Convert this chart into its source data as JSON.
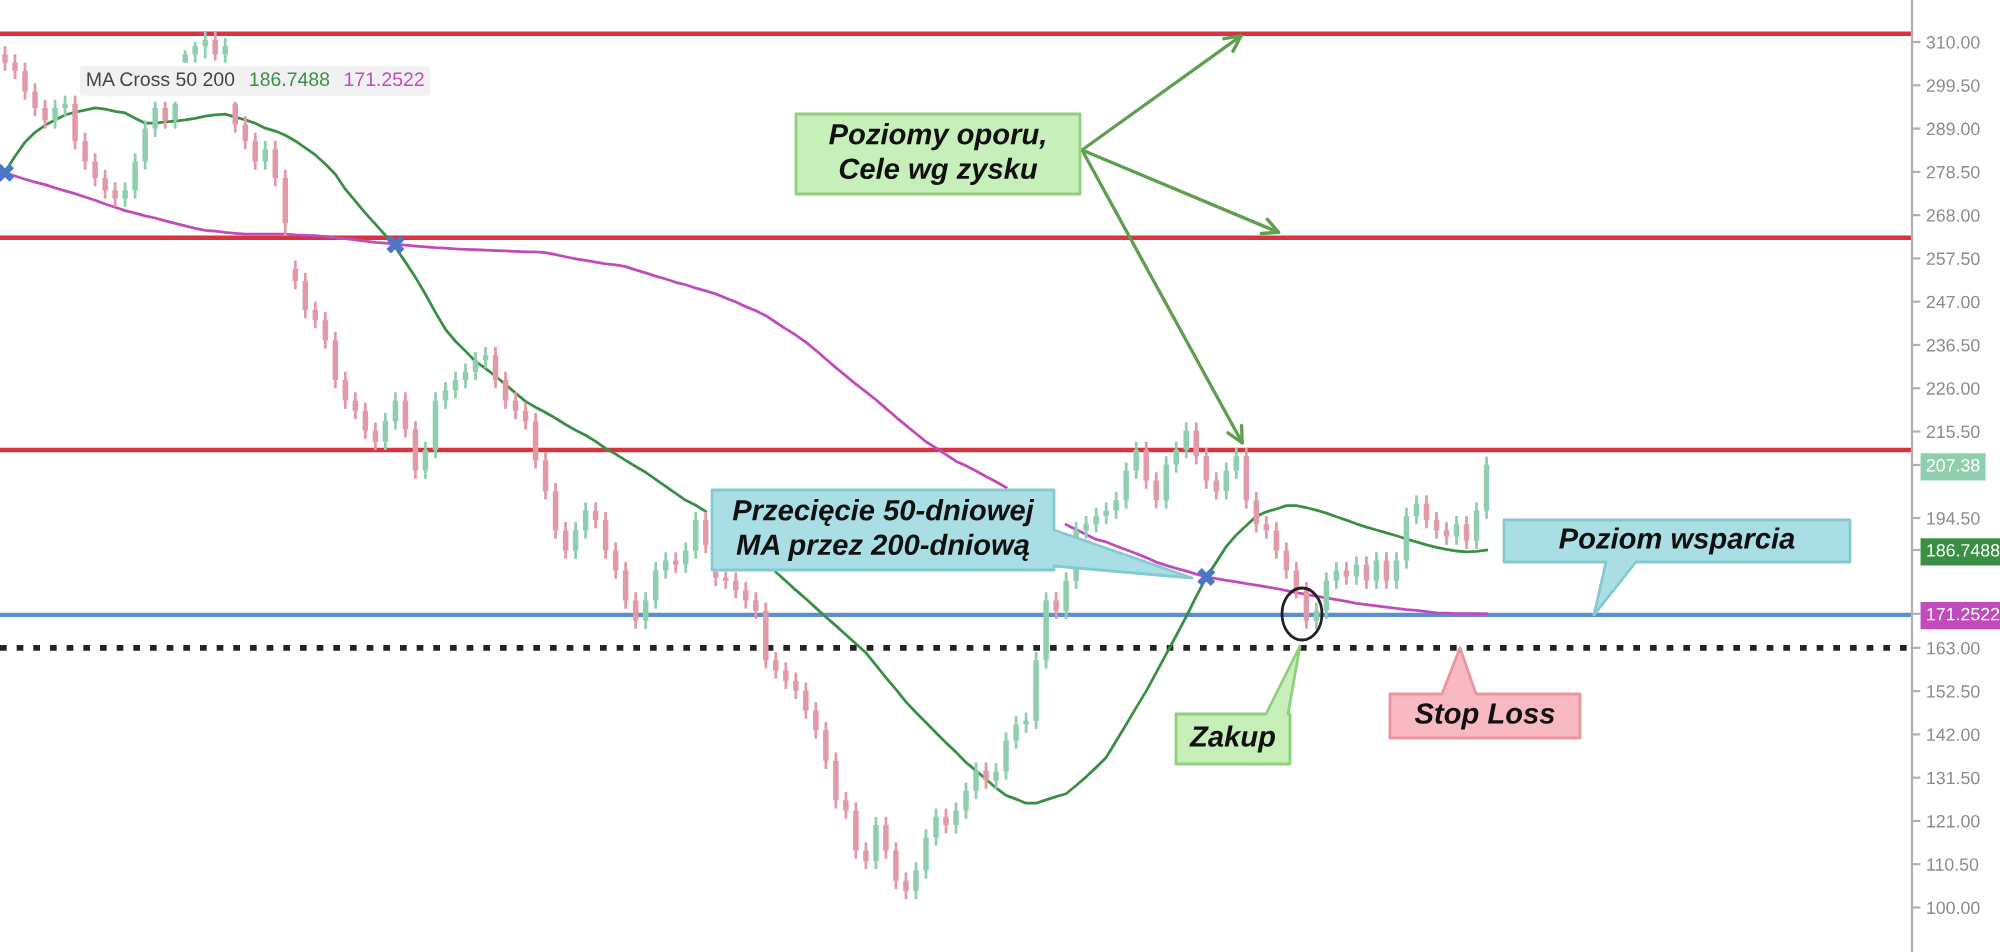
{
  "chart_data": {
    "type": "candlestick",
    "categories": [
      null,
      null,
      null,
      null,
      null,
      null,
      null,
      null,
      null,
      null,
      null,
      null,
      null,
      null,
      null,
      null,
      null,
      null,
      null,
      null,
      null,
      null,
      null,
      null,
      null,
      null,
      null,
      null,
      null,
      null,
      null,
      null,
      null,
      null,
      null,
      null,
      null,
      null,
      null,
      null,
      null,
      null,
      null,
      null,
      null,
      null,
      null,
      null,
      null,
      null,
      null,
      null,
      null,
      null,
      null,
      null,
      null,
      null,
      null,
      null,
      null,
      null,
      null,
      null,
      null,
      null,
      null,
      null,
      null,
      null,
      null,
      null,
      null,
      null,
      null,
      null,
      null,
      null,
      null,
      null,
      null,
      null,
      null,
      null,
      null,
      null,
      null,
      null,
      null,
      null,
      null,
      null,
      null,
      null,
      null,
      null,
      null,
      null,
      null,
      null,
      null,
      null,
      null,
      null,
      null,
      null,
      null,
      null,
      null,
      null,
      null,
      null,
      null,
      null,
      null,
      null,
      null,
      null,
      null,
      null,
      null,
      null,
      null,
      null,
      null,
      null,
      null,
      null,
      null,
      null,
      null,
      null,
      null,
      null,
      null,
      null,
      null,
      null,
      null,
      null,
      null,
      null,
      null,
      null,
      null,
      null,
      null,
      null,
      null,
      null,
      null,
      null,
      null,
      null,
      null,
      null,
      null,
      null,
      null,
      null,
      null,
      null,
      null,
      null,
      null,
      null,
      null,
      null,
      null,
      null,
      null,
      null,
      null,
      null,
      null,
      null,
      null,
      null,
      null,
      null,
      null,
      null,
      null,
      null,
      null,
      null,
      null,
      null,
      null,
      null,
      null
    ],
    "ohlc": [
      [
        307,
        309,
        303,
        305
      ],
      [
        305,
        307,
        301,
        303
      ],
      [
        303,
        305,
        296,
        298
      ],
      [
        298,
        300,
        292,
        294
      ],
      [
        294,
        296,
        289,
        291
      ],
      [
        291,
        296,
        289,
        294
      ],
      [
        294,
        297,
        292,
        295
      ],
      [
        295,
        297,
        284,
        286
      ],
      [
        286,
        288,
        279,
        281
      ],
      [
        281,
        283,
        275,
        277
      ],
      [
        277,
        279,
        272,
        274
      ],
      [
        274,
        276,
        270,
        272
      ],
      [
        272,
        276,
        270,
        274
      ],
      [
        274,
        283,
        272,
        281
      ],
      [
        281,
        291,
        279,
        289
      ],
      [
        289,
        295.5,
        287,
        294
      ],
      [
        294,
        295.5,
        289,
        291
      ],
      [
        291,
        295.5,
        289,
        295
      ],
      [
        305,
        308,
        305,
        307
      ],
      [
        307,
        310,
        305,
        309
      ],
      [
        309,
        312.5,
        306,
        310.5
      ],
      [
        310.5,
        312.5,
        305.5,
        307
      ],
      [
        307,
        311,
        305,
        309
      ],
      [
        295,
        295.5,
        288,
        290
      ],
      [
        290,
        292,
        284,
        286
      ],
      [
        286,
        288,
        279,
        281
      ],
      [
        281,
        286,
        279,
        284
      ],
      [
        284,
        286,
        275,
        277
      ],
      [
        277,
        279,
        263,
        266
      ],
      [
        255,
        257,
        250,
        252
      ],
      [
        252,
        254,
        243,
        245
      ],
      [
        245,
        247,
        240.5,
        242.5
      ],
      [
        242.5,
        244.5,
        235.6,
        237.6
      ],
      [
        237.6,
        239.6,
        226,
        228
      ],
      [
        228,
        230,
        221,
        223
      ],
      [
        223,
        225,
        218.5,
        220.5
      ],
      [
        220.5,
        222.5,
        213.7,
        215.7
      ],
      [
        215.7,
        217.7,
        211,
        213
      ],
      [
        213,
        220,
        211,
        218
      ],
      [
        218,
        225,
        216,
        223
      ],
      [
        223,
        225,
        214,
        216
      ],
      [
        216,
        218,
        204,
        206
      ],
      [
        206,
        213,
        204,
        211
      ],
      [
        211,
        225,
        209,
        223
      ],
      [
        223,
        227.5,
        221,
        225.5
      ],
      [
        225.5,
        230,
        223.5,
        228
      ],
      [
        228,
        232,
        226,
        230
      ],
      [
        230,
        234.8,
        228,
        232.8
      ],
      [
        232.8,
        236,
        230.8,
        234
      ],
      [
        234,
        236,
        226,
        228
      ],
      [
        228,
        230,
        221,
        223
      ],
      [
        223,
        225,
        218.5,
        220.5
      ],
      [
        220.5,
        222.5,
        216,
        218
      ],
      [
        218,
        220,
        206.5,
        208.5
      ],
      [
        208.5,
        210.5,
        199,
        201
      ],
      [
        201,
        203,
        189.5,
        191.5
      ],
      [
        191.5,
        193.5,
        184.6,
        186.6
      ],
      [
        186.6,
        193.5,
        184.6,
        191.5
      ],
      [
        191.5,
        198.3,
        189.5,
        196.3
      ],
      [
        196.3,
        198.3,
        192,
        194
      ],
      [
        194,
        196,
        184.6,
        186.6
      ],
      [
        186.6,
        188.6,
        179.8,
        181.8
      ],
      [
        181.8,
        183.8,
        172.5,
        174.5
      ],
      [
        174.5,
        176.5,
        167.6,
        169.6
      ],
      [
        169.6,
        176.5,
        167.6,
        174.5
      ],
      [
        174.5,
        183.8,
        172.5,
        181.8
      ],
      [
        181.8,
        186.2,
        179.8,
        184.2
      ],
      [
        184.2,
        186.2,
        181.2,
        183.2
      ],
      [
        183.2,
        188.6,
        181.2,
        186.6
      ],
      [
        186.6,
        196,
        184.6,
        194
      ],
      [
        194,
        196,
        186,
        188
      ],
      [
        181.5,
        181.8,
        178,
        180
      ],
      [
        180,
        181.5,
        177.3,
        179.3
      ],
      [
        179.3,
        181.3,
        175,
        177
      ],
      [
        177,
        179,
        172.5,
        174.5
      ],
      [
        174.5,
        176.5,
        170,
        172
      ],
      [
        172,
        174,
        158,
        160
      ],
      [
        160,
        162,
        155.5,
        157.5
      ],
      [
        157.5,
        159.5,
        153,
        155
      ],
      [
        155,
        157,
        150.6,
        152.6
      ],
      [
        152.6,
        154.6,
        145.8,
        147.8
      ],
      [
        147.8,
        149.8,
        141,
        143
      ],
      [
        143,
        145,
        133.6,
        135.6
      ],
      [
        135.6,
        137.6,
        124,
        126
      ],
      [
        126,
        128,
        121.5,
        123.5
      ],
      [
        123.5,
        125.5,
        111.8,
        113.8
      ],
      [
        113.8,
        115.8,
        109.3,
        111.3
      ],
      [
        111.3,
        122,
        109.3,
        120
      ],
      [
        120,
        122,
        111.8,
        113.8
      ],
      [
        113.8,
        115.8,
        104.5,
        106.5
      ],
      [
        106.5,
        108.5,
        102,
        104
      ],
      [
        104,
        111,
        102,
        109
      ],
      [
        109,
        119,
        107,
        117
      ],
      [
        117,
        124,
        115,
        122
      ],
      [
        122,
        124,
        118,
        120
      ],
      [
        120,
        125.5,
        118,
        123.5
      ],
      [
        123.5,
        130.3,
        121.5,
        128.3
      ],
      [
        128.3,
        135.2,
        126.3,
        133.2
      ],
      [
        133.2,
        135.2,
        128.8,
        130.8
      ],
      [
        130.8,
        135,
        128.8,
        133
      ],
      [
        133,
        142.5,
        131,
        140.5
      ],
      [
        140.5,
        146.4,
        138.5,
        144.4
      ],
      [
        144.4,
        147.3,
        142.4,
        145.3
      ],
      [
        145.3,
        162,
        143.3,
        160
      ],
      [
        160,
        176.5,
        158,
        174.5
      ],
      [
        174.5,
        176.5,
        170,
        172
      ],
      [
        172,
        181.3,
        170,
        179.3
      ],
      [
        179.3,
        193.5,
        177.3,
        191.5
      ],
      [
        191.5,
        195,
        189.5,
        193
      ],
      [
        193,
        197,
        191,
        195
      ],
      [
        195,
        198.3,
        193,
        196.3
      ],
      [
        196.3,
        200.8,
        194.3,
        198.8
      ],
      [
        198.8,
        208,
        196.8,
        206
      ],
      [
        206,
        213,
        204,
        211
      ],
      [
        211,
        213,
        201.6,
        203.6
      ],
      [
        203.6,
        205.6,
        196.8,
        198.8
      ],
      [
        198.8,
        209.5,
        196.8,
        207.5
      ],
      [
        207.5,
        213,
        205.5,
        211
      ],
      [
        211,
        217.7,
        209,
        215.7
      ],
      [
        215.7,
        217.7,
        207.5,
        209.5
      ],
      [
        209.5,
        211.5,
        201.6,
        203.6
      ],
      [
        203.6,
        205.6,
        199,
        201
      ],
      [
        201,
        208,
        199,
        206
      ],
      [
        206,
        211.5,
        204,
        209.5
      ],
      [
        209.5,
        211.5,
        196.8,
        198.8
      ],
      [
        198.8,
        200.8,
        191,
        193
      ],
      [
        193,
        195,
        189.5,
        191.5
      ],
      [
        191.5,
        193.5,
        184.6,
        186.6
      ],
      [
        186.6,
        188.6,
        179.8,
        181.8
      ],
      [
        181.8,
        183.8,
        175,
        177
      ],
      [
        177,
        179,
        167.6,
        169.6
      ],
      [
        169.6,
        174,
        167.6,
        172
      ],
      [
        172,
        181.3,
        170,
        179.3
      ],
      [
        179.3,
        183.8,
        177.3,
        181.8
      ],
      [
        181.8,
        183.8,
        178.3,
        180.3
      ],
      [
        180.3,
        185.2,
        178.3,
        183.2
      ],
      [
        183.2,
        185.2,
        177.3,
        179.3
      ],
      [
        179.3,
        186.2,
        177.3,
        184.2
      ],
      [
        184.2,
        186.2,
        177.3,
        179.3
      ],
      [
        179.3,
        186.2,
        177.3,
        184.2
      ],
      [
        184.2,
        197,
        182.2,
        195
      ],
      [
        195,
        200,
        193,
        198
      ],
      [
        198,
        200,
        192,
        194
      ],
      [
        194,
        196,
        189.5,
        191.5
      ],
      [
        191.5,
        193.5,
        188,
        190
      ],
      [
        190,
        195,
        188,
        193
      ],
      [
        193,
        195,
        187,
        189
      ],
      [
        189,
        198.3,
        187,
        196.3
      ],
      [
        196.3,
        209.4,
        194.3,
        207.38
      ],
      null,
      null,
      null,
      null,
      null,
      null,
      null,
      null,
      null,
      null,
      null,
      null,
      null,
      null,
      null,
      null,
      null,
      null,
      null,
      null,
      null,
      null,
      null,
      null,
      null,
      null,
      null,
      null,
      null,
      null,
      null,
      null,
      null,
      null,
      null,
      null,
      null,
      null,
      null,
      null,
      null,
      null
    ],
    "colors": [
      "#e39aa7",
      "#e39aa7",
      "#e39aa7",
      "#e39aa7",
      "#e39aa7",
      "#8fcfae",
      "#8fcfae",
      "#e39aa7",
      "#e39aa7",
      "#e39aa7",
      "#e39aa7",
      "#e39aa7",
      "#8fcfae",
      "#8fcfae",
      "#8fcfae",
      "#8fcfae",
      "#e39aa7",
      "#8fcfae",
      "#8fcfae",
      "#8fcfae",
      "#8fcfae",
      "#e39aa7",
      "#8fcfae",
      "#e39aa7",
      "#e39aa7",
      "#e39aa7",
      "#8fcfae",
      "#e39aa7",
      "#e39aa7",
      "#e39aa7",
      "#e39aa7",
      "#e39aa7",
      "#e39aa7",
      "#e39aa7",
      "#e39aa7",
      "#e39aa7",
      "#e39aa7",
      "#e39aa7",
      "#8fcfae",
      "#8fcfae",
      "#e39aa7",
      "#e39aa7",
      "#8fcfae",
      "#8fcfae",
      "#8fcfae",
      "#8fcfae",
      "#8fcfae",
      "#8fcfae",
      "#8fcfae",
      "#e39aa7",
      "#e39aa7",
      "#e39aa7",
      "#e39aa7",
      "#e39aa7",
      "#e39aa7",
      "#e39aa7",
      "#e39aa7",
      "#8fcfae",
      "#8fcfae",
      "#e39aa7",
      "#e39aa7",
      "#e39aa7",
      "#e39aa7",
      "#e39aa7",
      "#8fcfae",
      "#8fcfae",
      "#8fcfae",
      "#e39aa7",
      "#8fcfae",
      "#8fcfae",
      "#e39aa7",
      "#e39aa7",
      "#e39aa7",
      "#e39aa7",
      "#e39aa7",
      "#e39aa7",
      "#e39aa7",
      "#e39aa7",
      "#e39aa7",
      "#e39aa7",
      "#e39aa7",
      "#e39aa7",
      "#e39aa7",
      "#e39aa7",
      "#e39aa7",
      "#e39aa7",
      "#e39aa7",
      "#8fcfae",
      "#e39aa7",
      "#e39aa7",
      "#e39aa7",
      "#8fcfae",
      "#8fcfae",
      "#8fcfae",
      "#e39aa7",
      "#8fcfae",
      "#8fcfae",
      "#8fcfae",
      "#e39aa7",
      "#8fcfae",
      "#8fcfae",
      "#8fcfae",
      "#8fcfae",
      "#8fcfae",
      "#8fcfae",
      "#e39aa7",
      "#8fcfae",
      "#8fcfae",
      "#8fcfae",
      "#8fcfae",
      "#8fcfae",
      "#8fcfae",
      "#8fcfae",
      "#8fcfae",
      "#e39aa7",
      "#e39aa7",
      "#8fcfae",
      "#8fcfae",
      "#8fcfae",
      "#e39aa7",
      "#e39aa7",
      "#e39aa7",
      "#8fcfae",
      "#8fcfae",
      "#e39aa7",
      "#e39aa7",
      "#e39aa7",
      "#e39aa7",
      "#e39aa7",
      "#e39aa7",
      "#e39aa7",
      "#8fcfae",
      "#8fcfae",
      "#8fcfae",
      "#e39aa7",
      "#8fcfae",
      "#e39aa7",
      "#8fcfae",
      "#e39aa7",
      "#8fcfae",
      "#8fcfae",
      "#8fcfae",
      "#e39aa7",
      "#e39aa7",
      "#e39aa7",
      "#8fcfae",
      "#e39aa7",
      "#8fcfae",
      "#8fcfae",
      null,
      null,
      null,
      null,
      null,
      null,
      null,
      null,
      null,
      null,
      null,
      null,
      null,
      null,
      null,
      null,
      null,
      null,
      null,
      null,
      null,
      null,
      null,
      null,
      null,
      null,
      null,
      null,
      null,
      null,
      null,
      null,
      null,
      null,
      null,
      null,
      null,
      null,
      null,
      null,
      null,
      null
    ],
    "series": [
      {
        "name": "186.7488",
        "type": "line",
        "color": "#3a8f45",
        "values": [
          278.4,
          282.3,
          285.7,
          288.1,
          289.8,
          291.1,
          292.3,
          293.0,
          293.5,
          294.0,
          293.7,
          293.2,
          292.8,
          291.5,
          290.3,
          290.3,
          290.6,
          290.8,
          291.1,
          291.5,
          292.0,
          292.3,
          292.5,
          291.8,
          291.1,
          290.3,
          289.1,
          288.4,
          287.4,
          286.0,
          284.3,
          282.6,
          280.4,
          277.9,
          274.3,
          271.4,
          268.5,
          265.8,
          263.1,
          260.2,
          256.6,
          252.9,
          248.8,
          244.4,
          240.3,
          237.4,
          235.0,
          232.5,
          230.8,
          228.9,
          226.9,
          224.8,
          222.8,
          221.4,
          220.1,
          218.7,
          217.2,
          215.8,
          214.6,
          213.1,
          211.4,
          210.0,
          208.5,
          207.0,
          205.6,
          203.9,
          202.2,
          200.5,
          198.8,
          197.6,
          196.1,
          null,
          null,
          null,
          null,
          null,
          null,
          181.4,
          179.2,
          177.0,
          174.9,
          172.7,
          170.5,
          168.4,
          166.2,
          164.0,
          161.8,
          158.8,
          155.8,
          152.9,
          149.9,
          147.3,
          144.9,
          142.4,
          140.0,
          137.7,
          135.2,
          133.2,
          131.1,
          129.0,
          127.2,
          126.3,
          125.3,
          125.3,
          126.1,
          126.9,
          127.6,
          129.6,
          131.7,
          134.0,
          136.4,
          140.4,
          144.4,
          148.5,
          152.5,
          157.0,
          161.5,
          166.0,
          170.6,
          175.5,
          180.1,
          183.8,
          187.6,
          190.4,
          192.7,
          194.9,
          196.0,
          196.7,
          197.5,
          197.5,
          197.0,
          196.4,
          195.7,
          194.8,
          194.0,
          193.1,
          192.3,
          191.6,
          190.9,
          190.2,
          189.4,
          188.7,
          188.0,
          187.4,
          186.9,
          186.5,
          186.3,
          186.4,
          186.7488,
          null,
          null,
          null,
          null,
          null,
          null,
          null,
          null,
          null,
          null,
          null,
          null,
          null,
          null,
          null,
          null,
          null,
          null,
          null,
          null,
          null,
          null,
          null,
          null,
          null,
          null,
          null,
          null,
          null,
          null,
          null,
          null,
          null,
          null,
          null,
          null,
          null,
          null,
          null,
          null,
          null,
          null
        ]
      },
      {
        "name": "171.2522",
        "type": "line",
        "color": "#c04cbc",
        "values": [
          278.3,
          277.5,
          276.7,
          276.0,
          275.4,
          274.6,
          273.9,
          273.2,
          272.4,
          271.6,
          270.7,
          269.9,
          269.1,
          268.5,
          267.8,
          267.3,
          266.6,
          266.0,
          265.4,
          264.8,
          264.3,
          264.1,
          263.8,
          263.6,
          263.4,
          263.4,
          263.4,
          263.4,
          263.4,
          263.2,
          263.1,
          263.0,
          262.8,
          262.5,
          262.3,
          262.0,
          261.7,
          261.4,
          261.2,
          260.9,
          260.7,
          260.5,
          260.3,
          260.1,
          260.0,
          259.8,
          259.7,
          259.6,
          259.5,
          259.4,
          259.3,
          259.2,
          259.1,
          259.1,
          258.9,
          258.4,
          257.9,
          257.4,
          257.0,
          256.6,
          256.2,
          255.9,
          255.5,
          254.7,
          254.0,
          253.2,
          252.5,
          251.7,
          251.1,
          250.3,
          249.6,
          248.9,
          247.9,
          246.9,
          245.8,
          244.8,
          243.6,
          242.0,
          240.4,
          238.9,
          237.2,
          235.2,
          233.1,
          231.0,
          229.0,
          227.0,
          225.1,
          223.2,
          221.1,
          219.0,
          217.0,
          215.0,
          213.0,
          211.5,
          209.9,
          208.3,
          207.2,
          205.9,
          204.6,
          203.3,
          201.9,
          null,
          null,
          null,
          null,
          null,
          192.9,
          191.7,
          190.5,
          189.3,
          188.7,
          187.7,
          186.8,
          185.9,
          184.9,
          183.8,
          183.0,
          182.3,
          181.6,
          180.9,
          180.2,
          179.8,
          179.4,
          179.0,
          178.6,
          178.2,
          177.8,
          177.4,
          176.9,
          176.4,
          176.0,
          175.5,
          175.1,
          174.7,
          174.3,
          173.8,
          173.5,
          173.2,
          172.9,
          172.6,
          172.3,
          172.1,
          171.8,
          171.5,
          171.4,
          171.3,
          171.3,
          171.3,
          171.2522,
          null,
          null,
          null,
          null,
          null,
          null,
          null,
          null,
          null,
          null,
          null,
          null,
          null,
          null,
          null,
          null,
          null,
          null,
          null,
          null,
          null,
          null,
          null,
          null,
          null,
          null,
          null,
          null,
          null,
          null,
          null,
          null,
          null,
          null,
          null,
          null,
          null,
          null,
          null,
          null,
          null,
          null
        ]
      },
      {
        "type": "scatter",
        "color": "#4a78c8",
        "marker": "cross",
        "values": [
          278.3,
          null,
          null,
          null,
          null,
          null,
          null,
          null,
          null,
          null,
          null,
          null,
          null,
          null,
          null,
          null,
          null,
          null,
          null,
          null,
          null,
          null,
          null,
          null,
          null,
          null,
          null,
          null,
          null,
          null,
          null,
          null,
          null,
          null,
          null,
          null,
          null,
          null,
          null,
          260.9,
          null,
          null,
          null,
          null,
          null,
          null,
          null,
          null,
          null,
          null,
          null,
          null,
          null,
          null,
          null,
          null,
          null,
          null,
          null,
          null,
          null,
          null,
          null,
          null,
          null,
          null,
          null,
          null,
          null,
          null,
          null,
          null,
          null,
          null,
          null,
          null,
          null,
          null,
          null,
          null,
          null,
          null,
          null,
          null,
          null,
          null,
          null,
          null,
          null,
          null,
          null,
          null,
          null,
          null,
          null,
          null,
          null,
          null,
          null,
          null,
          null,
          null,
          null,
          null,
          null,
          null,
          null,
          null,
          null,
          null,
          null,
          null,
          null,
          null,
          null,
          null,
          null,
          null,
          null,
          null,
          180.2,
          null,
          null,
          null,
          null,
          null,
          null,
          null,
          null,
          null,
          null,
          null,
          null,
          null,
          null,
          null,
          null,
          null,
          null,
          null,
          null,
          null,
          null,
          null,
          null,
          null,
          null,
          null,
          null,
          null,
          null,
          null,
          null,
          null,
          null,
          null,
          null,
          null,
          null,
          null,
          null,
          null,
          null,
          null,
          null,
          null,
          null,
          null,
          null,
          null,
          null,
          null,
          null,
          null,
          null,
          null,
          null,
          null,
          null,
          null,
          null,
          null,
          null,
          null,
          null,
          null,
          null,
          null,
          null,
          null,
          null
        ]
      }
    ],
    "legend_title": "MA Cross 50 200",
    "legend": "top left",
    "ylim": [
      89.2,
      320.2
    ],
    "yticks": [
      {
        "value": 100,
        "label": "100.00"
      },
      {
        "value": 110.5,
        "label": "110.50"
      },
      {
        "value": 121,
        "label": "121.00"
      },
      {
        "value": 131.5,
        "label": "131.50"
      },
      {
        "value": 142,
        "label": "142.00"
      },
      {
        "value": 152.5,
        "label": "152.50"
      },
      {
        "value": 163,
        "label": "163.00"
      },
      171.2522,
      186.7488,
      {
        "value": 194.5,
        "label": "194.50"
      },
      207.38,
      {
        "value": 215.5,
        "label": "215.50"
      },
      {
        "value": 226,
        "label": "226.00"
      },
      {
        "value": 236.5,
        "label": "236.50"
      },
      {
        "value": 247,
        "label": "247.00"
      },
      {
        "value": 257.5,
        "label": "257.50"
      },
      {
        "value": 268,
        "label": "268.00"
      },
      {
        "value": 278.5,
        "label": "278.50"
      },
      {
        "value": 289,
        "label": "289.00"
      },
      {
        "value": 299.5,
        "label": "299.50"
      },
      {
        "value": 310,
        "label": "310.00"
      }
    ],
    "tick_labels": "y",
    "ref_lines": [
      {
        "axis": "y",
        "value": 312,
        "color": "#d8343f"
      },
      {
        "axis": "y",
        "value": 262.5,
        "color": "#d8343f"
      },
      {
        "axis": "y",
        "value": 211,
        "color": "#d8343f"
      },
      {
        "axis": "y",
        "value": 171,
        "label": "Poziom wsparcia",
        "color": "#5b8fd0"
      },
      {
        "axis": "y",
        "value": 163,
        "label": "Stop Loss",
        "color": "#222222",
        "line_style": "dotted"
      }
    ],
    "annotations": [
      "Poziomy oporu,\nCele wg zysku",
      "Przecięcie 50-dniowej\nMA przez 200-dniową",
      "Zakup"
    ]
  }
}
